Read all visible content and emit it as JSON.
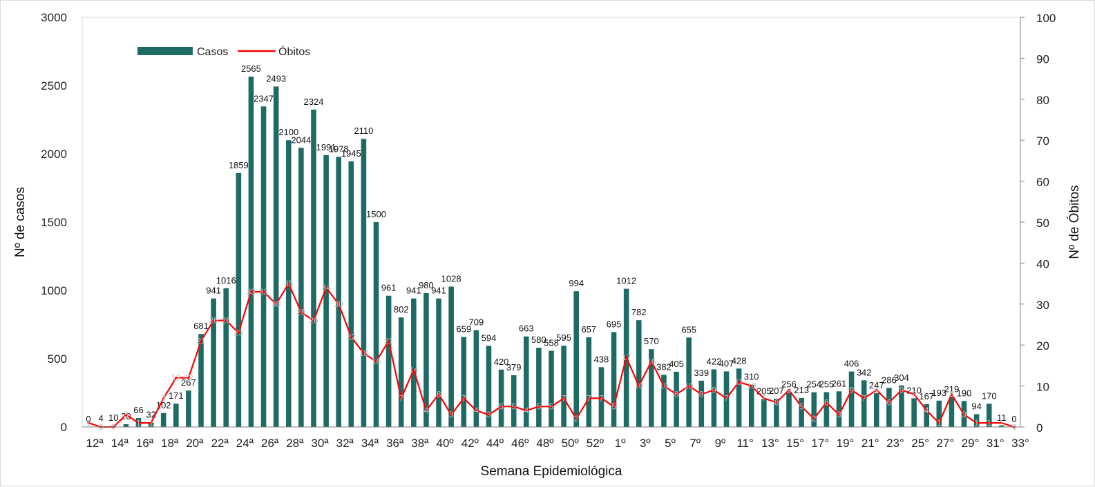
{
  "chart_data": {
    "type": "bar",
    "title": "",
    "xlabel": "Semana Epidemiológica",
    "ylabel": "Nº de casos",
    "y2label": "Nº de Óbitos",
    "ylim": [
      0,
      3000
    ],
    "y2lim": [
      0,
      100
    ],
    "yticks": [
      0,
      500,
      1000,
      1500,
      2000,
      2500,
      3000
    ],
    "y2ticks": [
      0,
      10,
      20,
      30,
      40,
      50,
      60,
      70,
      80,
      90,
      100
    ],
    "grid": false,
    "legend_position": "top-left",
    "categories": [
      "12ª",
      "13ª",
      "14ª",
      "15ª",
      "16ª",
      "17ª",
      "18ª",
      "19ª",
      "20ª",
      "21ª",
      "22ª",
      "23ª",
      "24ª",
      "25ª",
      "26ª",
      "27ª",
      "28ª",
      "29ª",
      "30ª",
      "31ª",
      "32ª",
      "33ª",
      "34ª",
      "35ª",
      "36ª",
      "37ª",
      "38ª",
      "39ª",
      "40º",
      "41º",
      "42º",
      "43º",
      "44º",
      "45º",
      "46º",
      "47º",
      "48º",
      "49º",
      "50º",
      "51º",
      "52º",
      "53º",
      "1º",
      "2º",
      "3º",
      "4º",
      "5º",
      "6º",
      "7º",
      "8º",
      "9º",
      "10º",
      "11°",
      "12°",
      "13°",
      "14°",
      "15°",
      "16°",
      "17°",
      "18°",
      "19°",
      "20°",
      "21°",
      "22°",
      "23°",
      "24°",
      "25°",
      "26°",
      "27°",
      "28°",
      "29°",
      "30°",
      "31°",
      "32°",
      "33°"
    ],
    "visible_tick_labels": [
      "12ª",
      "14ª",
      "16ª",
      "18ª",
      "20ª",
      "22ª",
      "24ª",
      "26ª",
      "28ª",
      "30ª",
      "32ª",
      "34ª",
      "36ª",
      "38ª",
      "40º",
      "42º",
      "44º",
      "46º",
      "48º",
      "50º",
      "52º",
      "1º",
      "3º",
      "5º",
      "7º",
      "9º",
      "11°",
      "13°",
      "15°",
      "17°",
      "19°",
      "21°",
      "23°",
      "25°",
      "27°",
      "29°",
      "31°",
      "33°"
    ],
    "series": [
      {
        "name": "Casos",
        "kind": "bar",
        "axis": "left",
        "color": "#1e6b66",
        "values": [
          0,
          4,
          10,
          20,
          66,
          32,
          102,
          171,
          267,
          681,
          941,
          1016,
          1859,
          2565,
          2347,
          2493,
          2100,
          2044,
          2324,
          1991,
          1978,
          1945,
          2110,
          1500,
          961,
          802,
          941,
          980,
          941,
          1028,
          659,
          709,
          594,
          420,
          379,
          663,
          580,
          558,
          595,
          994,
          657,
          438,
          695,
          1012,
          782,
          570,
          382,
          405,
          655,
          339,
          422,
          407,
          428,
          310,
          205,
          207,
          256,
          213,
          254,
          255,
          261,
          406,
          342,
          247,
          286,
          304,
          210,
          167,
          193,
          219,
          190,
          94,
          170,
          11,
          0
        ]
      },
      {
        "name": "Óbitos",
        "kind": "line",
        "axis": "right",
        "color": "#ff0000",
        "values": [
          1,
          0,
          0,
          3,
          1,
          1,
          7,
          12,
          12,
          21,
          26,
          26,
          23,
          33,
          33,
          30,
          35,
          28,
          26,
          34,
          30,
          22,
          18,
          16,
          21,
          7,
          14,
          4,
          8,
          3,
          7,
          4,
          3,
          5,
          5,
          4,
          5,
          5,
          7,
          2,
          7,
          7,
          5,
          17,
          10,
          16,
          10,
          8,
          10,
          8,
          9,
          7,
          11,
          10,
          7,
          6,
          9,
          5,
          2,
          6,
          3,
          9,
          7,
          9,
          6,
          9,
          8,
          4,
          1,
          8,
          3,
          1,
          1,
          1,
          0
        ]
      }
    ]
  },
  "legend": {
    "casos": "Casos",
    "obitos": "Óbitos"
  }
}
